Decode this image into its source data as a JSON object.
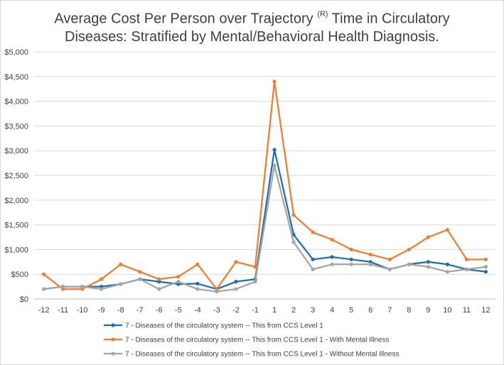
{
  "chart_data": {
    "type": "line",
    "title_line1": "Average Cost Per Person over Trajectory",
    "title_sup": "(R)",
    "title_line1_end": " Time in Circulatory",
    "title_line2": "Diseases: Stratified by Mental/Behavioral Health Diagnosis.",
    "xlabel": "",
    "ylabel": "",
    "x": [
      -12,
      -11,
      -10,
      -9,
      -8,
      -7,
      -6,
      -5,
      -4,
      -3,
      -2,
      -1,
      1,
      2,
      3,
      4,
      5,
      6,
      7,
      8,
      9,
      10,
      11,
      12
    ],
    "x_ticks": [
      "-12",
      "-11",
      "-10",
      "-9",
      "-8",
      "-7",
      "-6",
      "-5",
      "-4",
      "-3",
      "-2",
      "-1",
      "1",
      "2",
      "3",
      "4",
      "5",
      "6",
      "7",
      "8",
      "9",
      "10",
      "11",
      "12"
    ],
    "ylim": [
      0,
      5000
    ],
    "y_ticks": [
      0,
      500,
      1000,
      1500,
      2000,
      2500,
      3000,
      3500,
      4000,
      4500,
      5000
    ],
    "y_tick_labels": [
      "$0",
      "$500",
      "$1,000",
      "$1,500",
      "$2,000",
      "$2,500",
      "$3,000",
      "$3,500",
      "$4,000",
      "$4,500",
      "$5,000"
    ],
    "grid": true,
    "legend_position": "bottom",
    "series": [
      {
        "name": "7 - Diseases of the circulatory system -- This from CCS Level 1",
        "color": "#1f6fb0",
        "values": [
          200,
          250,
          250,
          250,
          300,
          400,
          350,
          300,
          310,
          200,
          350,
          400,
          3020,
          1300,
          800,
          850,
          800,
          750,
          600,
          700,
          750,
          700,
          600,
          550
        ]
      },
      {
        "name": "7 - Diseases of the circulatory system -- This from CCS Level 1 - With Mental Illness",
        "color": "#ed7d31",
        "values": [
          500,
          200,
          200,
          400,
          700,
          550,
          400,
          450,
          700,
          200,
          750,
          650,
          4400,
          1700,
          1350,
          1200,
          1000,
          900,
          800,
          1000,
          1250,
          1400,
          800,
          800
        ]
      },
      {
        "name": "7 - Diseases of the circulatory system -- This from CCS Level 1 - Without Mental Illness",
        "color": "#a5a5a5",
        "values": [
          200,
          250,
          250,
          200,
          300,
          400,
          200,
          350,
          200,
          150,
          200,
          350,
          2700,
          1150,
          600,
          700,
          700,
          700,
          600,
          700,
          650,
          550,
          600,
          650
        ]
      }
    ]
  }
}
